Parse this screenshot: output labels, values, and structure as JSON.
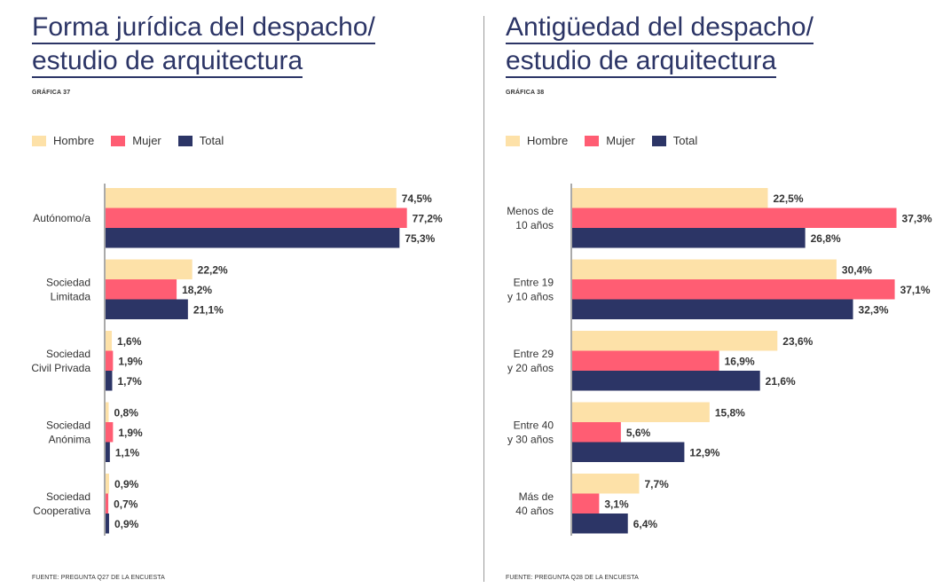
{
  "colors": {
    "hombre": "#fde1a8",
    "mujer": "#ff5d73",
    "total": "#2c3566"
  },
  "legend": {
    "hombre": "Hombre",
    "mujer": "Mujer",
    "total": "Total"
  },
  "panels": [
    {
      "title_line1": "Forma jurídica del despacho/",
      "title_line2": "estudio de arquitectura",
      "graph_label": "GRÁFICA 37",
      "source": "FUENTE: PREGUNTA Q27 DE LA ENCUESTA"
    },
    {
      "title_line1": "Antigüedad del despacho/",
      "title_line2": "estudio de arquitectura",
      "graph_label": "GRÁFICA 38",
      "source": "FUENTE: PREGUNTA Q28 DE LA ENCUESTA"
    }
  ],
  "chart_data": [
    {
      "type": "bar",
      "orientation": "horizontal",
      "title": "Forma jurídica del despacho/ estudio de arquitectura",
      "categories": [
        [
          "Autónomo/a"
        ],
        [
          "Sociedad",
          "Limitada"
        ],
        [
          "Sociedad",
          "Civil Privada"
        ],
        [
          "Sociedad",
          "Anónima"
        ],
        [
          "Sociedad",
          "Cooperativa"
        ]
      ],
      "series": [
        {
          "name": "Hombre",
          "values": [
            74.5,
            22.2,
            1.6,
            0.8,
            0.9
          ],
          "labels": [
            "74,5%",
            "22,2%",
            "1,6%",
            "0,8%",
            "0,9%"
          ]
        },
        {
          "name": "Mujer",
          "values": [
            77.2,
            18.2,
            1.9,
            1.9,
            0.7
          ],
          "labels": [
            "77,2%",
            "18,2%",
            "1,9%",
            "1,9%",
            "0,7%"
          ]
        },
        {
          "name": "Total",
          "values": [
            75.3,
            21.1,
            1.7,
            1.1,
            0.9
          ],
          "labels": [
            "75,3%",
            "21,1%",
            "1,7%",
            "1,1%",
            "0,9%"
          ]
        }
      ],
      "legend_position": "top-left"
    },
    {
      "type": "bar",
      "orientation": "horizontal",
      "title": "Antigüedad del despacho/ estudio de arquitectura",
      "categories": [
        [
          "Menos de",
          "10 años"
        ],
        [
          "Entre 19",
          "y 10 años"
        ],
        [
          "Entre 29",
          "y 20 años"
        ],
        [
          "Entre 40",
          "y 30 años"
        ],
        [
          "Más de",
          "40 años"
        ]
      ],
      "series": [
        {
          "name": "Hombre",
          "values": [
            22.5,
            30.4,
            23.6,
            15.8,
            7.7
          ],
          "labels": [
            "22,5%",
            "30,4%",
            "23,6%",
            "15,8%",
            "7,7%"
          ]
        },
        {
          "name": "Mujer",
          "values": [
            37.3,
            37.1,
            16.9,
            5.6,
            3.1
          ],
          "labels": [
            "37,3%",
            "37,1%",
            "16,9%",
            "5,6%",
            "3,1%"
          ]
        },
        {
          "name": "Total",
          "values": [
            26.8,
            32.3,
            21.6,
            12.9,
            6.4
          ],
          "labels": [
            "26,8%",
            "32,3%",
            "21,6%",
            "12,9%",
            "6,4%"
          ]
        }
      ],
      "legend_position": "top-left"
    }
  ]
}
